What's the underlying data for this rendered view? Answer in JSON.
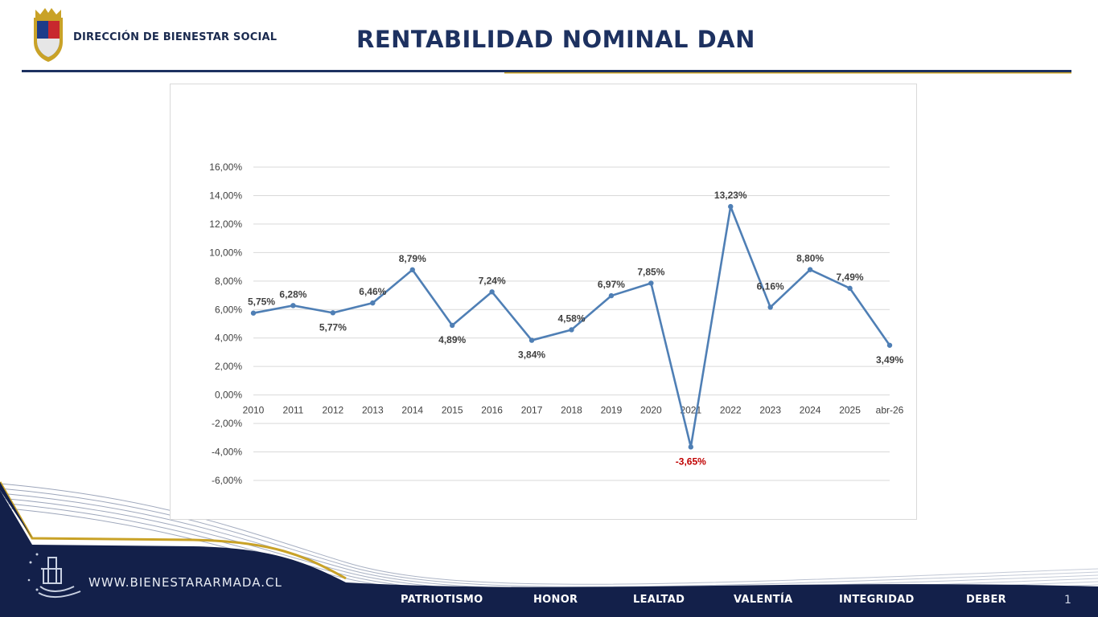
{
  "header": {
    "org_name": "DIRECCIÓN DE BIENESTAR SOCIAL",
    "title": "RENTABILIDAD NOMINAL DAN"
  },
  "colors": {
    "navy": "#1d3160",
    "gold": "#c9a227",
    "line": "#4f7fb5",
    "negative_label": "#c00000"
  },
  "chart_data": {
    "type": "line",
    "categories": [
      "2010",
      "2011",
      "2012",
      "2013",
      "2014",
      "2015",
      "2016",
      "2017",
      "2018",
      "2019",
      "2020",
      "2021",
      "2022",
      "2023",
      "2024",
      "2025",
      "abr-26"
    ],
    "series": [
      {
        "values": [
          5.75,
          6.28,
          5.77,
          6.46,
          8.79,
          4.89,
          7.24,
          3.84,
          4.58,
          6.97,
          7.85,
          -3.65,
          13.23,
          6.16,
          8.8,
          7.49,
          3.49
        ],
        "labels": [
          "5,75%",
          "6,28%",
          "5,77%",
          "6,46%",
          "8,79%",
          "4,89%",
          "7,24%",
          "3,84%",
          "4,58%",
          "6,97%",
          "7,85%",
          "-3,65%",
          "13,23%",
          "6,16%",
          "8,80%",
          "7,49%",
          "3,49%"
        ]
      }
    ],
    "y_ticks": [
      "16,00%",
      "14,00%",
      "12,00%",
      "10,00%",
      "8,00%",
      "6,00%",
      "4,00%",
      "2,00%",
      "0,00%",
      "-2,00%",
      "-4,00%",
      "-6,00%"
    ],
    "ylim": [
      -6,
      16
    ],
    "grid": true,
    "legend": "none"
  },
  "footer": {
    "website": "WWW.BIENESTARARMADA.CL",
    "values": [
      "PATRIOTISMO",
      "HONOR",
      "LEALTAD",
      "VALENTÍA",
      "INTEGRIDAD",
      "DEBER"
    ],
    "page_number": "1"
  }
}
